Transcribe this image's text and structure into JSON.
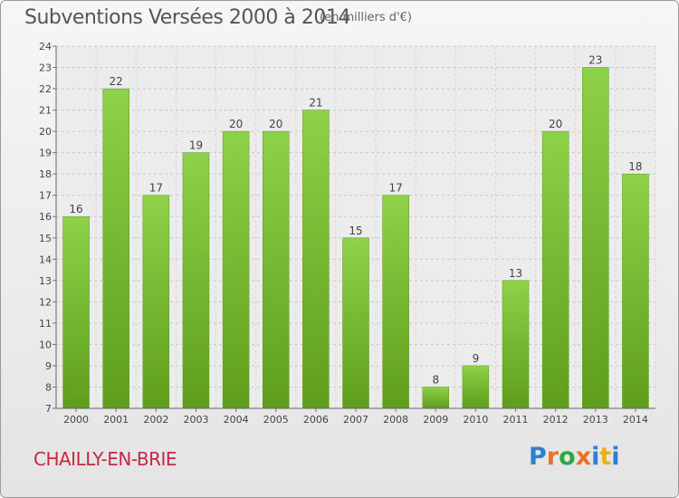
{
  "header": {
    "title": "Subventions Versées 2000 à 2014",
    "subtitle": "(en milliers d'€)"
  },
  "footer": {
    "commune": "CHAILLY-EN-BRIE",
    "logo_text": "Proxiti",
    "logo_colors": [
      "#2f7fd0",
      "#e8712a",
      "#2fa640",
      "#e8712a",
      "#2f7fd0",
      "#e8b020",
      "#2f7fd0"
    ]
  },
  "chart_data": {
    "type": "bar",
    "categories": [
      "2000",
      "2001",
      "2002",
      "2003",
      "2004",
      "2005",
      "2006",
      "2007",
      "2008",
      "2009",
      "2010",
      "2011",
      "2012",
      "2013",
      "2014"
    ],
    "values": [
      16,
      22,
      17,
      19,
      20,
      20,
      21,
      15,
      17,
      8,
      9,
      13,
      20,
      23,
      18
    ],
    "title": "Subventions Versées 2000 à 2014",
    "subtitle": "(en milliers d'€)",
    "xlabel": "",
    "ylabel": "",
    "ylim": [
      7,
      24
    ],
    "yticks": [
      7,
      8,
      9,
      10,
      11,
      12,
      13,
      14,
      15,
      16,
      17,
      18,
      19,
      20,
      21,
      22,
      23,
      24
    ],
    "grid": true,
    "bar_color": "#7cc23a",
    "bar_color_dark": "#5a9a1e"
  }
}
